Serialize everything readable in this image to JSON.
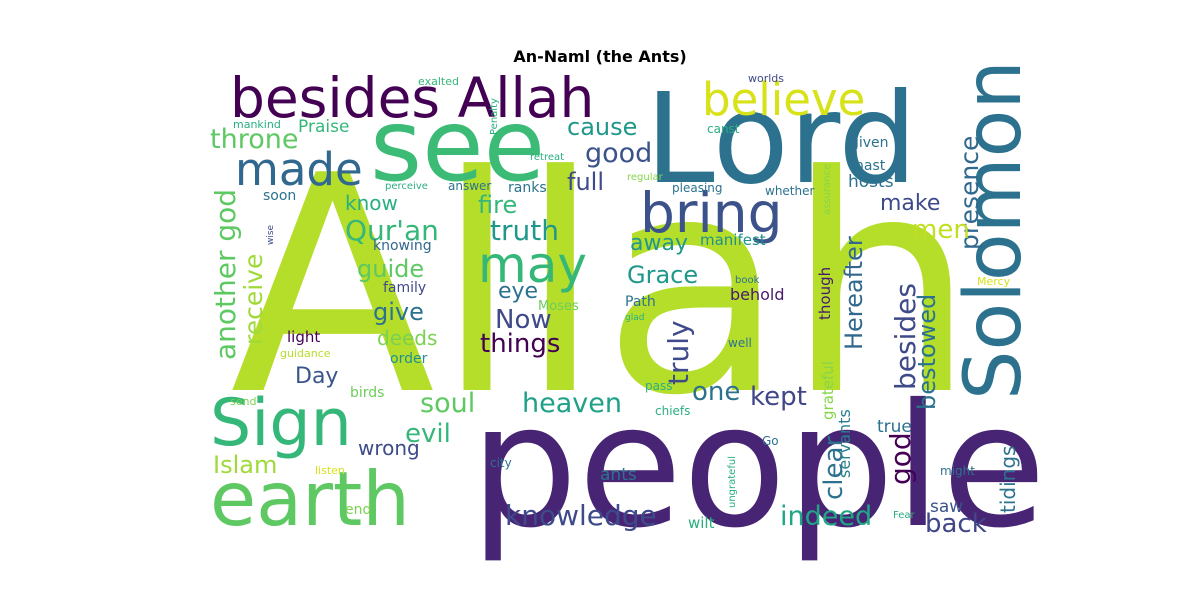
{
  "chart_data": {
    "type": "wordcloud",
    "title": "An-Naml (the Ants)",
    "words": [
      {
        "text": "Allah",
        "size": 1.0,
        "color": "#b5de2b"
      },
      {
        "text": "people",
        "size": 0.72,
        "color": "#482475"
      },
      {
        "text": "Lord",
        "size": 0.62,
        "color": "#2c728e"
      },
      {
        "text": "see",
        "size": 0.52,
        "color": "#3bbb75"
      },
      {
        "text": "Solomon",
        "size": 0.48,
        "color": "#2c728e"
      },
      {
        "text": "earth",
        "size": 0.48,
        "color": "#5ec962"
      },
      {
        "text": "Sign",
        "size": 0.45,
        "color": "#35b779"
      },
      {
        "text": "besides Allah",
        "size": 0.34,
        "color": "#440154"
      },
      {
        "text": "bring",
        "size": 0.34,
        "color": "#3b528b"
      },
      {
        "text": "may",
        "size": 0.32,
        "color": "#35b779"
      },
      {
        "text": "believe",
        "size": 0.29,
        "color": "#d8e219"
      },
      {
        "text": "made",
        "size": 0.28,
        "color": "#31688e"
      },
      {
        "text": "another god",
        "size": 0.18,
        "color": "#5ec962"
      },
      {
        "text": "Qur'an",
        "size": 0.18,
        "color": "#35b779"
      },
      {
        "text": "receive",
        "size": 0.16,
        "color": "#a0da39"
      },
      {
        "text": "presence",
        "size": 0.16,
        "color": "#31688e"
      },
      {
        "text": "heaven",
        "size": 0.16,
        "color": "#1fa187"
      },
      {
        "text": "knowledge",
        "size": 0.16,
        "color": "#3e4a89"
      },
      {
        "text": "besides",
        "size": 0.16,
        "color": "#3e4a89"
      },
      {
        "text": "god",
        "size": 0.16,
        "color": "#440154"
      },
      {
        "text": "truth",
        "size": 0.15,
        "color": "#1f988b"
      },
      {
        "text": "throne",
        "size": 0.15,
        "color": "#5ec962"
      },
      {
        "text": "truly",
        "size": 0.15,
        "color": "#3e4a89"
      },
      {
        "text": "indeed",
        "size": 0.15,
        "color": "#21a685"
      },
      {
        "text": "good",
        "size": 0.15,
        "color": "#3b528b"
      },
      {
        "text": "soul",
        "size": 0.15,
        "color": "#5ec962"
      },
      {
        "text": "Hereafter",
        "size": 0.15,
        "color": "#31688e"
      },
      {
        "text": "bestowed",
        "size": 0.15,
        "color": "#2c728e"
      },
      {
        "text": "things",
        "size": 0.14,
        "color": "#440154"
      },
      {
        "text": "Now",
        "size": 0.14,
        "color": "#3e4a89"
      },
      {
        "text": "Grace",
        "size": 0.14,
        "color": "#1f988b"
      },
      {
        "text": "guide",
        "size": 0.14,
        "color": "#5ec962"
      },
      {
        "text": "Islam",
        "size": 0.14,
        "color": "#a0da39"
      },
      {
        "text": "kept",
        "size": 0.14,
        "color": "#404688"
      },
      {
        "text": "back",
        "size": 0.14,
        "color": "#404688"
      },
      {
        "text": "clear",
        "size": 0.14,
        "color": "#2c728e"
      },
      {
        "text": "cause",
        "size": 0.14,
        "color": "#1f988b"
      },
      {
        "text": "evil",
        "size": 0.14,
        "color": "#35b779"
      },
      {
        "text": "men",
        "size": 0.14,
        "color": "#c2df23"
      },
      {
        "text": "one",
        "size": 0.14,
        "color": "#2c728e"
      },
      {
        "text": "tidings",
        "size": 0.13,
        "color": "#2c728e"
      },
      {
        "text": "full",
        "size": 0.13,
        "color": "#3e4a89"
      },
      {
        "text": "fire",
        "size": 0.13,
        "color": "#35b779"
      },
      {
        "text": "give",
        "size": 0.13,
        "color": "#2c728e"
      },
      {
        "text": "eye",
        "size": 0.13,
        "color": "#2c728e"
      },
      {
        "text": "away",
        "size": 0.13,
        "color": "#1f988b"
      },
      {
        "text": "Day",
        "size": 0.13,
        "color": "#39568c"
      },
      {
        "text": "make",
        "size": 0.12,
        "color": "#3e4a89"
      },
      {
        "text": "know",
        "size": 0.12,
        "color": "#29af7f"
      },
      {
        "text": "deeds",
        "size": 0.12,
        "color": "#7ad151"
      },
      {
        "text": "wrong",
        "size": 0.12,
        "color": "#3e4a89"
      },
      {
        "text": "servants",
        "size": 0.1,
        "color": "#277f8e"
      },
      {
        "text": "grateful",
        "size": 0.1,
        "color": "#86d549"
      },
      {
        "text": "though",
        "size": 0.1,
        "color": "#481a6c"
      },
      {
        "text": "Praise",
        "size": 0.1,
        "color": "#35b779"
      },
      {
        "text": "saw",
        "size": 0.1,
        "color": "#3b528b"
      },
      {
        "text": "true",
        "size": 0.1,
        "color": "#2c728e"
      },
      {
        "text": "ants",
        "size": 0.1,
        "color": "#2c728e"
      },
      {
        "text": "hosts",
        "size": 0.1,
        "color": "#2c728e"
      },
      {
        "text": "wilt",
        "size": 0.09,
        "color": "#29af7f"
      },
      {
        "text": "manifest",
        "size": 0.09,
        "color": "#21918c"
      },
      {
        "text": "behold",
        "size": 0.09,
        "color": "#481a6c"
      },
      {
        "text": "family",
        "size": 0.09,
        "color": "#3e4a89"
      },
      {
        "text": "knowing",
        "size": 0.09,
        "color": "#31688e"
      },
      {
        "text": "light",
        "size": 0.09,
        "color": "#440154"
      },
      {
        "text": "order",
        "size": 0.08,
        "color": "#21918c"
      },
      {
        "text": "Path",
        "size": 0.08,
        "color": "#2c728e"
      },
      {
        "text": "ranks",
        "size": 0.08,
        "color": "#2c728e"
      },
      {
        "text": "hast",
        "size": 0.08,
        "color": "#2c728e"
      },
      {
        "text": "given",
        "size": 0.08,
        "color": "#2c728e"
      },
      {
        "text": "soon",
        "size": 0.08,
        "color": "#2c728e"
      },
      {
        "text": "end",
        "size": 0.08,
        "color": "#7ad151"
      },
      {
        "text": "birds",
        "size": 0.08,
        "color": "#6ccd5a"
      },
      {
        "text": "Moses",
        "size": 0.08,
        "color": "#6ccd5a"
      },
      {
        "text": "whether",
        "size": 0.07,
        "color": "#2c728e"
      },
      {
        "text": "answer",
        "size": 0.07,
        "color": "#2c728e"
      },
      {
        "text": "pleasing",
        "size": 0.07,
        "color": "#2c728e"
      },
      {
        "text": "Go",
        "size": 0.07,
        "color": "#2c728e"
      },
      {
        "text": "city",
        "size": 0.07,
        "color": "#2c728e"
      },
      {
        "text": "might",
        "size": 0.07,
        "color": "#2c728e"
      },
      {
        "text": "well",
        "size": 0.07,
        "color": "#2c728e"
      },
      {
        "text": "chiefs",
        "size": 0.07,
        "color": "#29af7f"
      },
      {
        "text": "pass",
        "size": 0.07,
        "color": "#29af7f"
      },
      {
        "text": "canst",
        "size": 0.07,
        "color": "#29af7f"
      },
      {
        "text": "mankind",
        "size": 0.07,
        "color": "#29af7f"
      },
      {
        "text": "perceive",
        "size": 0.06,
        "color": "#29af7f"
      },
      {
        "text": "regular",
        "size": 0.06,
        "color": "#86d549"
      },
      {
        "text": "retreat",
        "size": 0.06,
        "color": "#29af7f"
      },
      {
        "text": "worlds",
        "size": 0.06,
        "color": "#3e4a89"
      },
      {
        "text": "exalted",
        "size": 0.06,
        "color": "#35b779"
      },
      {
        "text": "Penalty",
        "size": 0.06,
        "color": "#29af7f"
      },
      {
        "text": "assurance",
        "size": 0.06,
        "color": "#86d549"
      },
      {
        "text": "wise",
        "size": 0.06,
        "color": "#3e4a89"
      },
      {
        "text": "guidance",
        "size": 0.06,
        "color": "#b5de2b"
      },
      {
        "text": "send",
        "size": 0.06,
        "color": "#7ad151"
      },
      {
        "text": "listen",
        "size": 0.06,
        "color": "#d8e219"
      },
      {
        "text": "Mercy",
        "size": 0.06,
        "color": "#d8e219"
      },
      {
        "text": "book",
        "size": 0.06,
        "color": "#2c728e"
      },
      {
        "text": "glad",
        "size": 0.06,
        "color": "#29af7f"
      },
      {
        "text": "ungrateful",
        "size": 0.06,
        "color": "#29af7f"
      },
      {
        "text": "Fear",
        "size": 0.06,
        "color": "#29af7f"
      }
    ]
  }
}
